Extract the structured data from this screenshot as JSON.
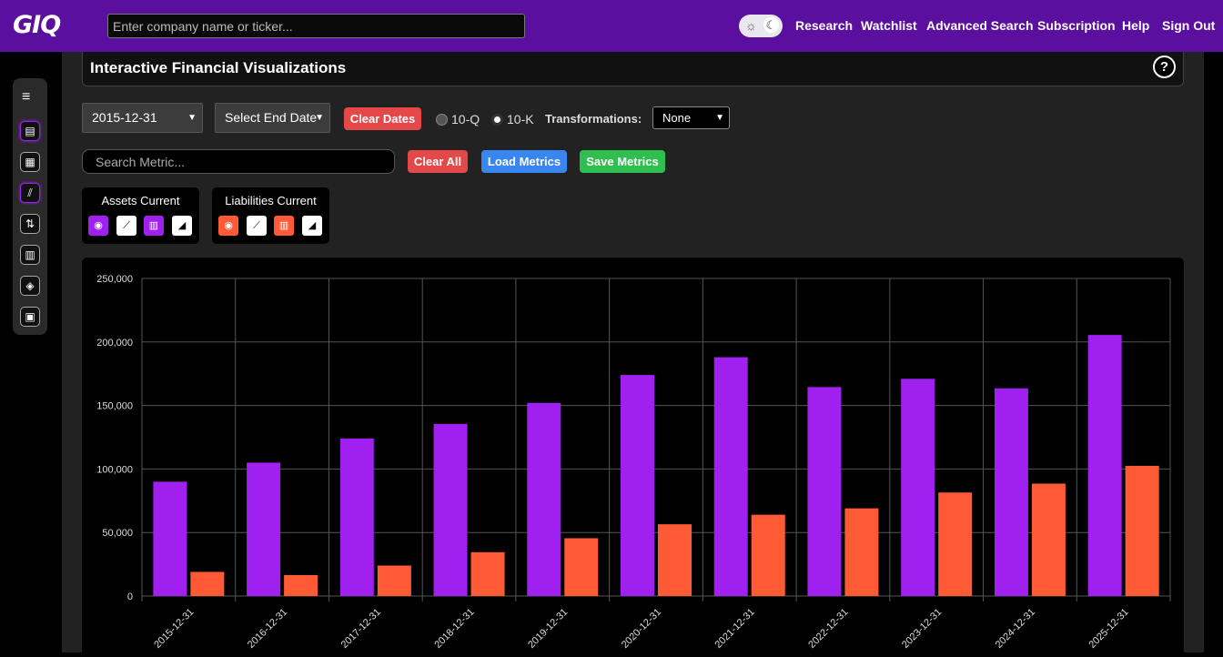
{
  "app": {
    "logo": "GIQ"
  },
  "header": {
    "search_placeholder": "Enter company name or ticker...",
    "nav": [
      "Research",
      "Watchlist",
      "Advanced Search",
      "Subscription",
      "Help",
      "Sign Out"
    ]
  },
  "theme": {
    "sun_icon": "☼",
    "moon_icon": "☾"
  },
  "page": {
    "title": "Interactive Financial Visualizations",
    "help": "?"
  },
  "controls": {
    "start_date": "2015-12-31",
    "end_date": "Select End Date",
    "clear_dates": "Clear Dates",
    "radio_10q": "10-Q",
    "radio_10k": "10-K",
    "selected_period": "10-K",
    "transformations_label": "Transformations:",
    "transformation": "None",
    "metric_search_placeholder": "Search Metric...",
    "clear_all": "Clear All",
    "load_metrics": "Load Metrics",
    "save_metrics": "Save Metrics"
  },
  "metrics": [
    {
      "name": "Assets Current",
      "color": "#a020f0"
    },
    {
      "name": "Liabilities Current",
      "color": "#ff5a36"
    }
  ],
  "sidebar_icons": [
    "menu-icon",
    "document-icon",
    "table-icon",
    "chart-icon",
    "transfer-icon",
    "calculator-icon",
    "handshake-icon",
    "building-icon"
  ],
  "chart_data": {
    "type": "bar",
    "categories": [
      "2015-12-31",
      "2016-12-31",
      "2017-12-31",
      "2018-12-31",
      "2019-12-31",
      "2020-12-31",
      "2021-12-31",
      "2022-12-31",
      "2023-12-31",
      "2024-12-31",
      "2025-12-31"
    ],
    "series": [
      {
        "name": "Assets Current",
        "color": "#a020f0",
        "values": [
          90000,
          105000,
          124000,
          135500,
          152000,
          174000,
          188000,
          164500,
          171000,
          163500,
          205500
        ]
      },
      {
        "name": "Liabilities Current",
        "color": "#ff5a36",
        "values": [
          19000,
          16500,
          24000,
          34500,
          45500,
          56500,
          64000,
          69000,
          81500,
          88500,
          102500
        ]
      }
    ],
    "ylim": [
      0,
      250000
    ],
    "yticks": [
      "0",
      "50,000",
      "100,000",
      "150,000",
      "200,000",
      "250,000"
    ],
    "grid": true
  }
}
